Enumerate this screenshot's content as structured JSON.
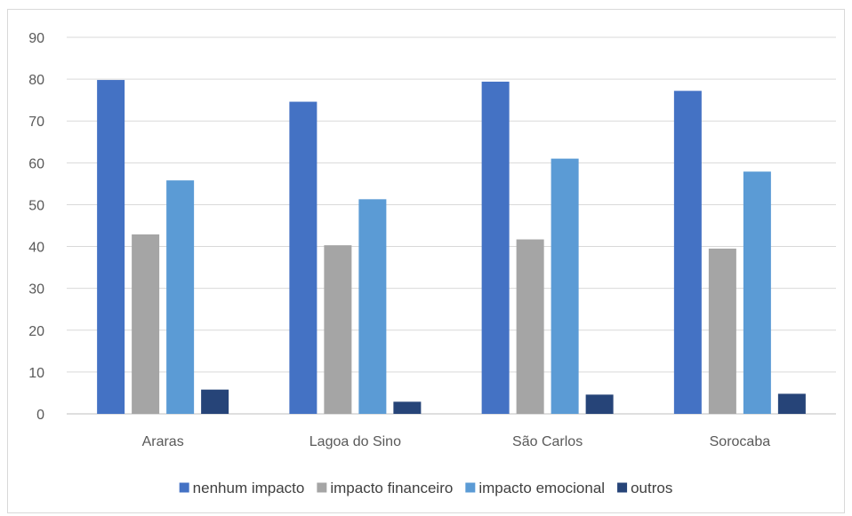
{
  "chart_data": {
    "type": "bar",
    "categories": [
      "Araras",
      "Lagoa do Sino",
      "São Carlos",
      "Sorocaba"
    ],
    "series": [
      {
        "name": "nenhum impacto",
        "color": "#4472c4",
        "values": [
          79.8,
          74.6,
          79.4,
          77.2
        ]
      },
      {
        "name": "impacto financeiro",
        "color": "#a5a5a5",
        "values": [
          42.9,
          40.3,
          41.7,
          39.5
        ]
      },
      {
        "name": "impacto emocional",
        "color": "#5b9bd5",
        "values": [
          55.8,
          51.3,
          61.0,
          57.9
        ]
      },
      {
        "name": "outros",
        "color": "#264478",
        "values": [
          5.8,
          2.9,
          4.6,
          4.8
        ]
      }
    ],
    "ylim": [
      0,
      90
    ],
    "yticks": [
      0,
      10,
      20,
      30,
      40,
      50,
      60,
      70,
      80,
      90
    ],
    "grid": true,
    "legend_position": "bottom",
    "title": "",
    "xlabel": "",
    "ylabel": ""
  }
}
